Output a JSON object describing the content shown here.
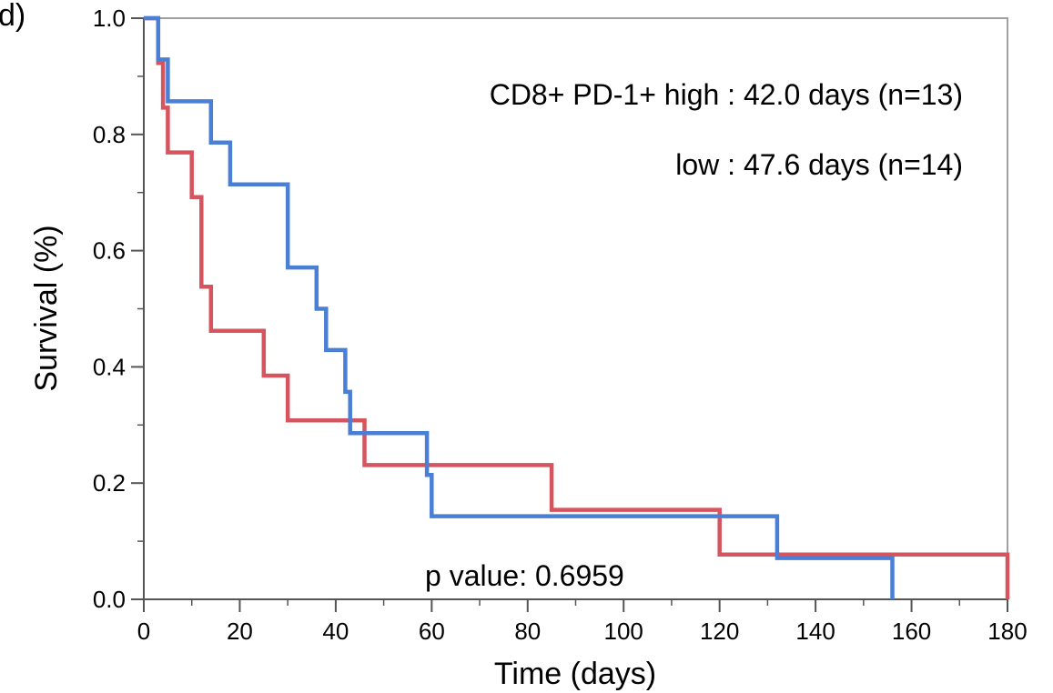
{
  "chart_data": {
    "type": "line",
    "step": true,
    "panel_label": "d)",
    "title": "",
    "xlabel": "Time (days)",
    "ylabel": "Survival (%)",
    "xlim": [
      0,
      180
    ],
    "ylim": [
      0,
      1
    ],
    "x_ticks": [
      0,
      20,
      40,
      60,
      80,
      100,
      120,
      140,
      160,
      180
    ],
    "x_tick_labels": [
      "0",
      "20",
      "40",
      "60",
      "80",
      "100",
      "120",
      "140",
      "160",
      "180"
    ],
    "y_ticks": [
      0,
      0.2,
      0.4,
      0.6,
      0.8,
      1.0
    ],
    "y_tick_labels": [
      "0.0",
      "0.2",
      "0.4",
      "0.6",
      "0.8",
      "1.0"
    ],
    "grid": false,
    "series": [
      {
        "color": "#4a7fd6",
        "x": [
          0,
          3,
          3,
          5,
          5,
          14,
          14,
          18,
          18,
          30,
          30,
          36,
          36,
          38,
          38,
          42,
          42,
          43,
          43,
          59,
          59,
          60,
          60,
          132,
          132,
          156,
          156
        ],
        "y": [
          1.0,
          1.0,
          0.929,
          0.929,
          0.857,
          0.857,
          0.786,
          0.786,
          0.714,
          0.714,
          0.571,
          0.571,
          0.5,
          0.5,
          0.429,
          0.429,
          0.357,
          0.357,
          0.286,
          0.286,
          0.214,
          0.214,
          0.143,
          0.143,
          0.071,
          0.071,
          0.0
        ]
      },
      {
        "color": "#d6545e",
        "x": [
          0,
          3,
          3,
          4,
          4,
          5,
          5,
          10,
          10,
          12,
          12,
          14,
          14,
          25,
          25,
          30,
          30,
          46,
          46,
          85,
          85,
          120,
          120,
          180,
          180
        ],
        "y": [
          1.0,
          1.0,
          0.923,
          0.923,
          0.846,
          0.846,
          0.769,
          0.769,
          0.692,
          0.692,
          0.538,
          0.538,
          0.462,
          0.462,
          0.385,
          0.385,
          0.308,
          0.308,
          0.231,
          0.231,
          0.154,
          0.154,
          0.077,
          0.077,
          0.0
        ]
      }
    ],
    "annotations": [
      "CD8+ PD-1+ high : 42.0 days (n=13)",
      "low : 47.6 days (n=14)",
      "p value: 0.6959"
    ]
  }
}
